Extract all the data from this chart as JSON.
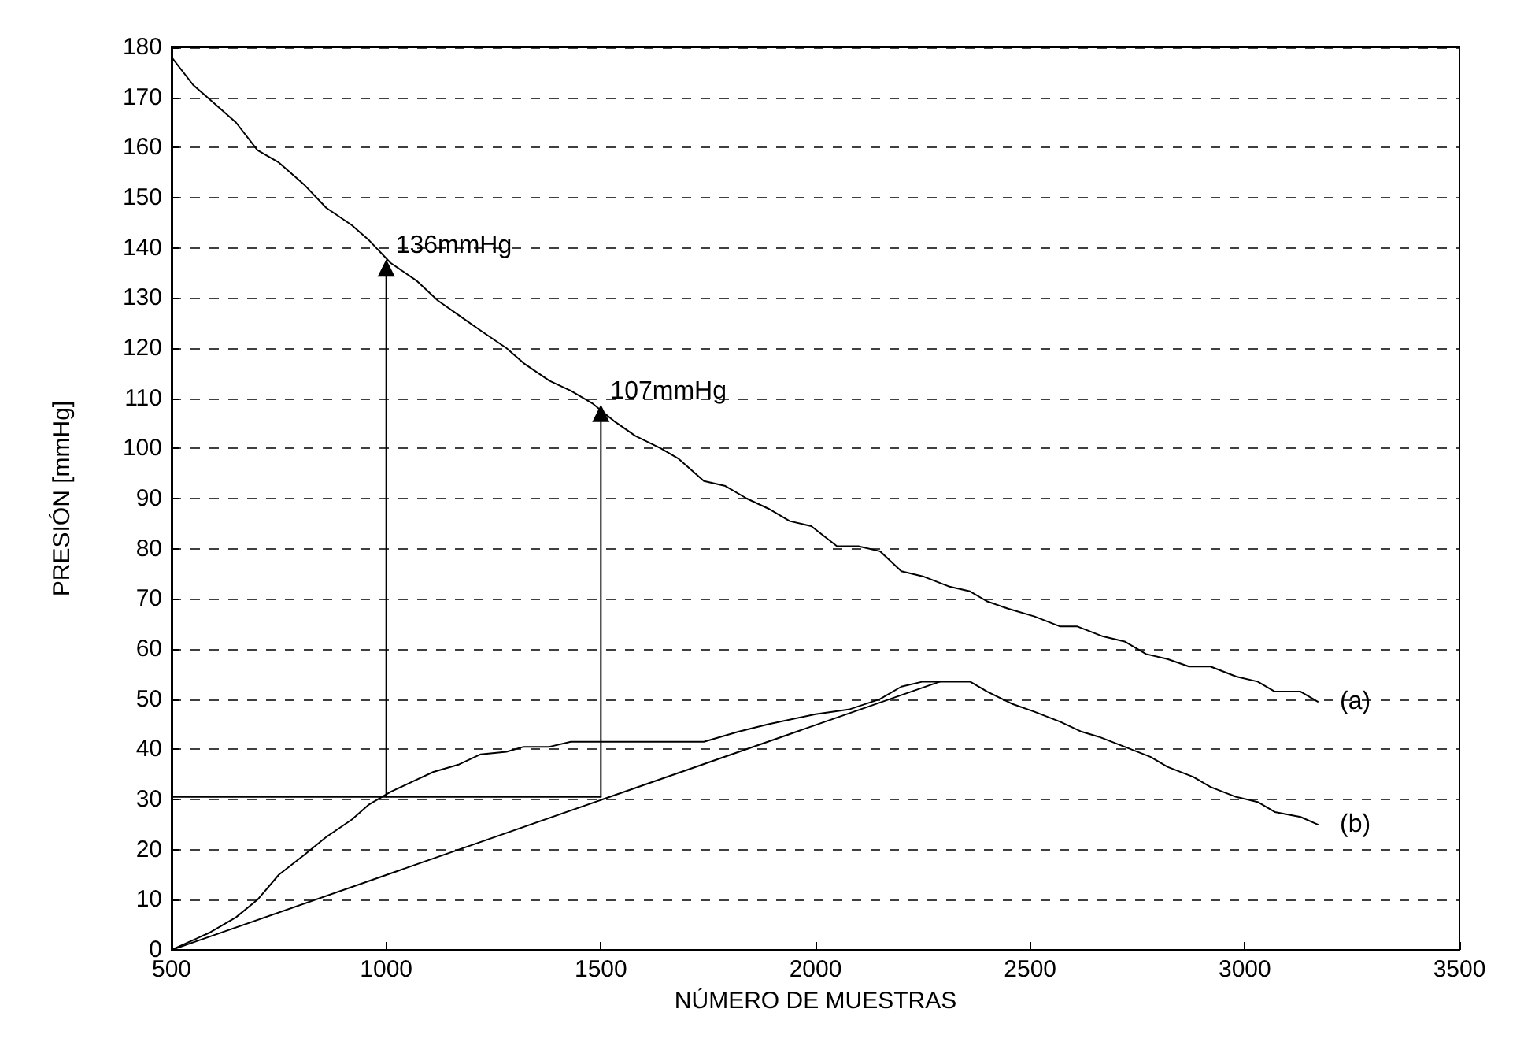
{
  "chart_data": {
    "type": "line",
    "xlabel": "NÚMERO DE MUESTRAS",
    "ylabel": "PRESIÓN [mmHg]",
    "xlim": [
      500,
      3500
    ],
    "xticks": [
      500,
      1000,
      1500,
      2000,
      2500,
      3000,
      3500
    ],
    "ylim": [
      0,
      180
    ],
    "yticks": [
      0,
      10,
      20,
      30,
      40,
      50,
      60,
      70,
      80,
      90,
      100,
      110,
      120,
      130,
      140,
      150,
      160,
      170,
      180
    ],
    "grid": "y",
    "line_style": "solid",
    "legend": false,
    "series": [
      {
        "name": "(a)",
        "color": "#000000",
        "x": [
          500,
          550,
          590,
          650,
          700,
          750,
          810,
          860,
          920,
          960,
          1010,
          1070,
          1120,
          1170,
          1220,
          1280,
          1320,
          1380,
          1430,
          1480,
          1530,
          1580,
          1640,
          1680,
          1740,
          1790,
          1840,
          1890,
          1940,
          1990,
          2050,
          2100,
          2150,
          2200,
          2250,
          2310,
          2360,
          2400,
          2450,
          2510,
          2570,
          2610,
          2670,
          2720,
          2770,
          2820,
          2870,
          2920,
          2980,
          3030,
          3070,
          3130,
          3170
        ],
        "values": [
          178,
          172.5,
          169.5,
          165,
          159.5,
          157,
          152.5,
          148,
          144.5,
          141.5,
          137,
          133.5,
          129.5,
          126.5,
          123.5,
          120,
          117,
          113.5,
          111.5,
          109,
          105.5,
          102.5,
          100,
          98,
          93.5,
          92.5,
          90,
          88,
          85.5,
          84.5,
          80.5,
          80.5,
          79.5,
          75.5,
          74.5,
          72.5,
          71.5,
          69.5,
          68,
          66.5,
          64.5,
          64.5,
          62.5,
          61.5,
          59,
          58,
          56.5,
          56.5,
          54.5,
          53.5,
          51.5,
          51.5,
          49.5
        ]
      },
      {
        "name": "(b)",
        "color": "#000000",
        "x": [
          500,
          590,
          650,
          700,
          750,
          810,
          860,
          920,
          960,
          1010,
          1060,
          1110,
          1170,
          1220,
          1280,
          1320,
          1380,
          1430,
          1740,
          1820,
          1890,
          2000,
          2080,
          2150,
          2200,
          2250,
          2360,
          2400,
          2460,
          2510,
          2570,
          2620,
          2660,
          2720,
          2780,
          2820,
          2880,
          2920,
          2980,
          3030,
          3070,
          3130,
          3170
        ],
        "values": [
          0,
          3.5,
          6.5,
          10,
          15,
          19,
          22.5,
          26,
          29,
          31.5,
          33.5,
          35.5,
          37,
          39,
          39.5,
          40.5,
          40.5,
          41.5,
          41.5,
          43.5,
          45,
          47,
          48,
          50,
          52.5,
          53.5,
          53.5,
          51.5,
          49,
          47.5,
          45.5,
          43.5,
          42.5,
          40.5,
          38.5,
          36.5,
          34.5,
          32.5,
          30.5,
          29.5,
          27.5,
          26.5,
          25
        ]
      },
      {
        "color": "#000000",
        "x": [
          500,
          2290
        ],
        "values": [
          0,
          53.5
        ]
      },
      {
        "color": "#000000",
        "x": [
          500,
          1500
        ],
        "values": [
          30.5,
          30.5
        ]
      },
      {
        "color": "#000000",
        "x": [
          1000,
          1000
        ],
        "values": [
          30.5,
          136
        ],
        "marker": "triangle"
      },
      {
        "color": "#000000",
        "x": [
          1500,
          1500
        ],
        "values": [
          30.5,
          107
        ],
        "marker": "triangle"
      }
    ],
    "annotations": [
      {
        "text": "136mmHg",
        "x": 1000,
        "y": 136
      },
      {
        "text": "107mmHg",
        "x": 1500,
        "y": 107
      }
    ]
  }
}
